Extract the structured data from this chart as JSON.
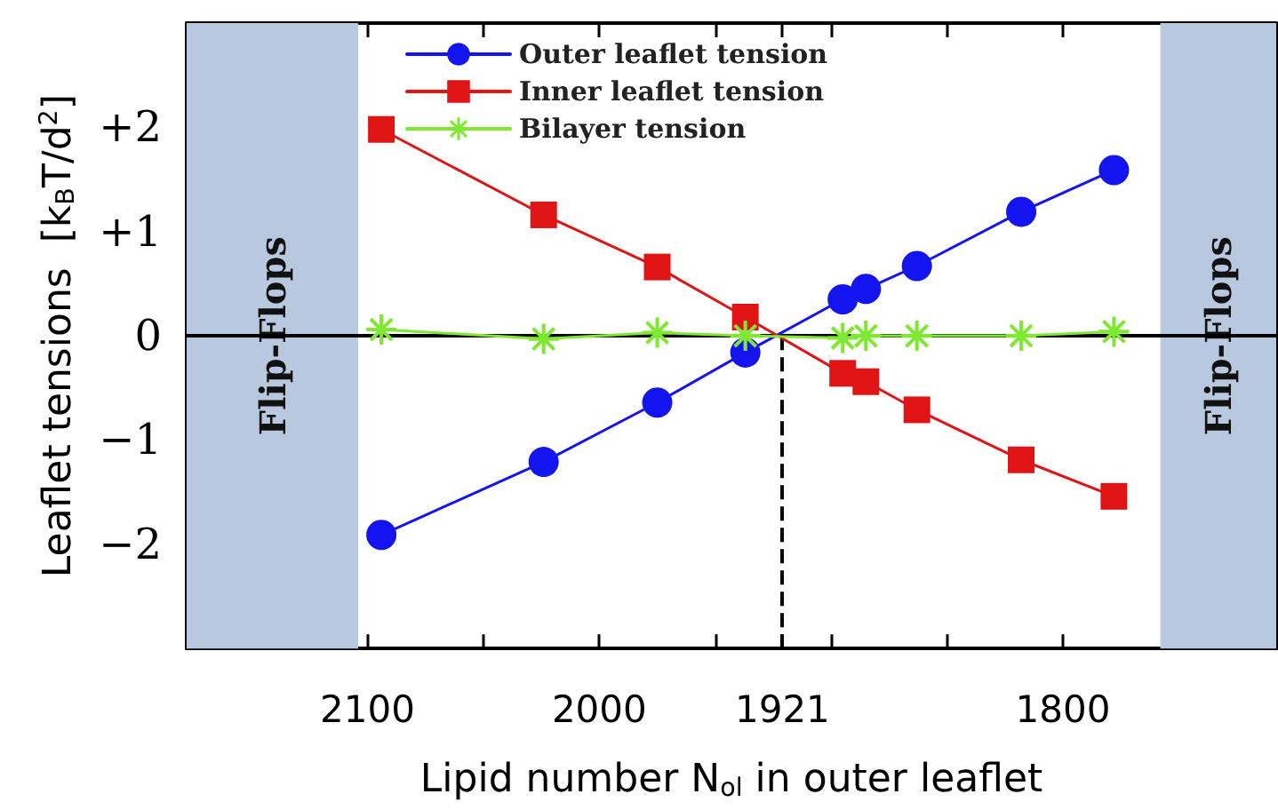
{
  "chart_data": {
    "type": "line",
    "xlabel": "Lipid number N$_{ol}$ in outer leaflet",
    "ylabel": "Leaflet tensions  [k$_{B}$T/d$^{2}$]",
    "x": [
      2094,
      2024,
      1975,
      1937,
      1895,
      1885,
      1863,
      1818,
      1778
    ],
    "series": [
      {
        "name": "Outer leaflet tension",
        "color": "#1414f0",
        "marker": "circle",
        "values": [
          -1.91,
          -1.21,
          -0.64,
          -0.16,
          0.35,
          0.45,
          0.67,
          1.19,
          1.59
        ]
      },
      {
        "name": "Inner leaflet tension",
        "color": "#e01414",
        "marker": "square",
        "values": [
          1.98,
          1.16,
          0.66,
          0.18,
          -0.36,
          -0.44,
          -0.71,
          -1.19,
          -1.54
        ]
      },
      {
        "name": "Bilayer tension",
        "color": "#7fe830",
        "marker": "star",
        "values": [
          0.06,
          -0.03,
          0.03,
          0.0,
          -0.02,
          0.0,
          0.0,
          0.0,
          0.04
        ]
      }
    ],
    "xlim": [
      2178,
      1708
    ],
    "xticks": [
      {
        "value": 2150,
        "label": null
      },
      2100,
      {
        "value": 2050,
        "label": null
      },
      2000,
      {
        "value": 1950,
        "label": null
      },
      1921,
      {
        "value": 1900,
        "label": null
      },
      {
        "value": 1850,
        "label": null
      },
      1800,
      {
        "value": 1750,
        "label": null
      }
    ],
    "ylim": [
      -3,
      3
    ],
    "yticks": [
      {
        "value": -2.5,
        "label": null
      },
      {
        "value": -2,
        "label": "−2"
      },
      {
        "value": -1.5,
        "label": null
      },
      {
        "value": -1,
        "label": "−1"
      },
      {
        "value": -0.5,
        "label": null
      },
      0,
      {
        "value": 0.5,
        "label": null
      },
      {
        "value": 1,
        "label": "+1"
      },
      {
        "value": 1.5,
        "label": null
      },
      {
        "value": 2,
        "label": "+2"
      },
      {
        "value": 2.5,
        "label": null
      }
    ],
    "ref_lines": [
      {
        "axis": "y",
        "value": 0,
        "color": "#000000",
        "line_style": "solid"
      },
      {
        "axis": "x",
        "value": 1921,
        "color": "#000000",
        "line_style": "dashed"
      }
    ],
    "bands": [
      {
        "axis": "x",
        "from": 2178,
        "to": 2104,
        "label": "Flip-Flops",
        "color": "#b8c8de"
      },
      {
        "axis": "x",
        "from": 1758,
        "to": 1708,
        "label": "Flip-Flops",
        "color": "#b8c8de"
      }
    ],
    "legend": "top left",
    "line_style": "solid",
    "grid": false
  }
}
